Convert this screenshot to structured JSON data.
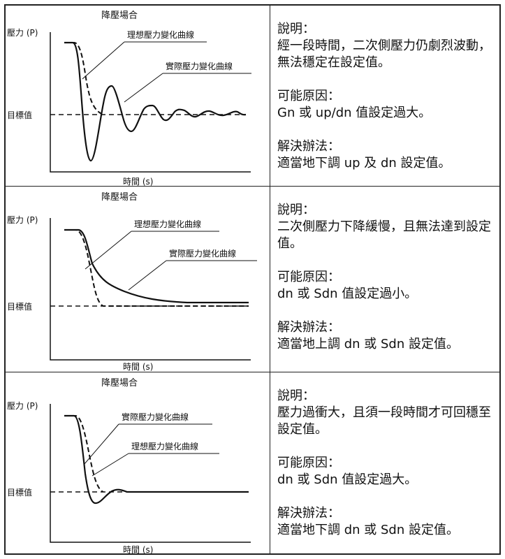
{
  "common": {
    "y_axis_label": "壓力 (P)",
    "x_axis_label": "時間 (s)",
    "target_label": "目標值",
    "ideal_curve": "理想壓力變化曲線",
    "actual_curve": "實際壓力變化曲線"
  },
  "cases": [
    {
      "title": "降壓場合",
      "explain_heading": "說明：",
      "explain_text": "經一段時間，二次側壓力仍劇烈波動，無法穩定在設定值。",
      "cause_heading": "可能原因：",
      "cause_text": "Gn 或 up/dn 值設定過大。",
      "solution_heading": "解決辦法：",
      "solution_text": "適當地下調 up 及 dn 設定值。"
    },
    {
      "title": "降壓場合",
      "explain_heading": "說明：",
      "explain_text": "二次側壓力下降緩慢，且無法達到設定值。",
      "cause_heading": "可能原因：",
      "cause_text": "dn 或 Sdn 值設定過小。",
      "solution_heading": "解決辦法：",
      "solution_text": "適當地上調 dn 或 Sdn 設定值。"
    },
    {
      "title": "降壓場合",
      "explain_heading": "說明：",
      "explain_text": "壓力過衝大，且須一段時間才可回穩至設定值。",
      "cause_heading": "可能原因：",
      "cause_text": "dn 或 Sdn 值設定過大。",
      "solution_heading": "解決辦法：",
      "solution_text": "適當地下調 dn 或 Sdn 設定值。"
    }
  ]
}
